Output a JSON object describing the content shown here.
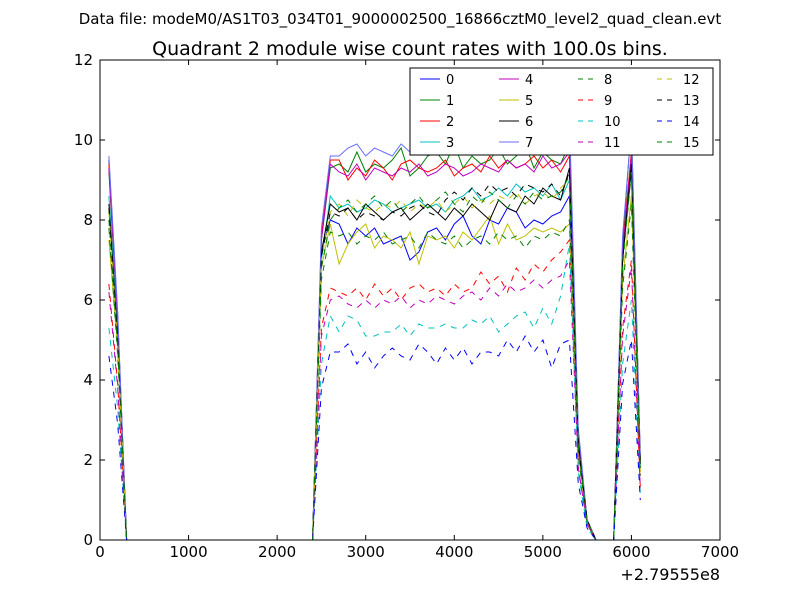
{
  "figure": {
    "suptitle": "Data file: modeM0/AS1T03_034T01_9000002500_16866cztM0_level2_quad_clean.evt",
    "offset_label": "+2.79555e8"
  },
  "chart_data": {
    "type": "line",
    "title": "Quadrant 2 module wise count rates with 100.0s bins.",
    "xlabel": "",
    "ylabel": "",
    "xlim": [
      0,
      7000
    ],
    "ylim": [
      0,
      12
    ],
    "x_offset": 279555000,
    "xticks": [
      0,
      1000,
      2000,
      3000,
      4000,
      5000,
      6000,
      7000
    ],
    "yticks": [
      0,
      2,
      4,
      6,
      8,
      10,
      12
    ],
    "grid": false,
    "legend": {
      "placement": "top-right",
      "ncol": 4
    },
    "x": [
      100,
      200,
      300,
      400,
      500,
      600,
      700,
      800,
      900,
      1000,
      1100,
      1200,
      1300,
      1400,
      1500,
      1600,
      1700,
      1800,
      1900,
      2000,
      2100,
      2200,
      2300,
      2400,
      2500,
      2600,
      2700,
      2800,
      2900,
      3000,
      3100,
      3200,
      3300,
      3400,
      3500,
      3600,
      3700,
      3800,
      3900,
      4000,
      4100,
      4200,
      4300,
      4400,
      4500,
      4600,
      4700,
      4800,
      4900,
      5000,
      5100,
      5200,
      5300,
      5400,
      5500,
      5600,
      5700,
      5800,
      5900,
      6000,
      6100
    ],
    "series": [
      {
        "name": "0",
        "color": "#0000ff",
        "dash": "solid",
        "values": [
          9.5,
          5.6,
          0,
          0,
          0,
          0,
          0,
          0,
          0,
          0,
          0,
          0,
          0,
          0,
          0,
          0,
          0,
          0,
          0,
          0,
          0,
          0,
          0,
          0,
          7.2,
          8.0,
          7.9,
          7.4,
          7.8,
          7.6,
          7.8,
          7.4,
          7.5,
          7.6,
          7.0,
          7.2,
          7.7,
          7.8,
          7.5,
          7.9,
          8.1,
          7.6,
          7.4,
          8.0,
          7.9,
          8.3,
          8.2,
          7.8,
          8.0,
          7.9,
          8.1,
          8.2,
          8.6,
          2.4,
          0.5,
          0,
          0,
          0,
          7.0,
          9.5,
          2.0
        ]
      },
      {
        "name": "1",
        "color": "#008000",
        "dash": "solid",
        "values": [
          9.2,
          5.4,
          0,
          0,
          0,
          0,
          0,
          0,
          0,
          0,
          0,
          0,
          0,
          0,
          0,
          0,
          0,
          0,
          0,
          0,
          0,
          0,
          0,
          0,
          7.5,
          9.3,
          9.4,
          9.2,
          9.7,
          9.2,
          9.4,
          9.3,
          9.5,
          9.8,
          9.1,
          9.3,
          9.6,
          9.7,
          9.4,
          9.9,
          9.3,
          9.6,
          9.4,
          9.5,
          9.8,
          9.4,
          9.6,
          9.9,
          9.3,
          9.7,
          9.5,
          9.4,
          9.9,
          2.6,
          0.5,
          0,
          0,
          0,
          7.4,
          10.4,
          2.0
        ]
      },
      {
        "name": "2",
        "color": "#ff0000",
        "dash": "solid",
        "values": [
          9.4,
          5.5,
          0,
          0,
          0,
          0,
          0,
          0,
          0,
          0,
          0,
          0,
          0,
          0,
          0,
          0,
          0,
          0,
          0,
          0,
          0,
          0,
          0,
          0,
          7.6,
          9.5,
          9.5,
          9.0,
          9.3,
          9.1,
          9.5,
          9.3,
          9.0,
          9.4,
          9.5,
          9.3,
          9.2,
          9.3,
          9.5,
          9.1,
          9.3,
          9.4,
          9.2,
          9.6,
          9.3,
          9.5,
          9.3,
          9.4,
          9.6,
          9.3,
          9.5,
          9.2,
          9.6,
          2.5,
          0.5,
          0,
          0,
          0,
          7.3,
          9.7,
          2.0
        ]
      },
      {
        "name": "3",
        "color": "#00bfbf",
        "dash": "solid",
        "values": [
          8.6,
          5.2,
          0,
          0,
          0,
          0,
          0,
          0,
          0,
          0,
          0,
          0,
          0,
          0,
          0,
          0,
          0,
          0,
          0,
          0,
          0,
          0,
          0,
          0,
          7.0,
          8.6,
          8.3,
          8.4,
          8.2,
          8.3,
          8.5,
          8.4,
          8.2,
          8.3,
          8.4,
          8.5,
          8.3,
          8.4,
          8.2,
          8.5,
          8.6,
          8.8,
          8.5,
          8.6,
          8.8,
          8.6,
          8.9,
          8.7,
          8.8,
          8.6,
          8.9,
          8.5,
          9.0,
          2.3,
          0.5,
          0,
          0,
          0,
          7.0,
          9.2,
          1.8
        ]
      },
      {
        "name": "4",
        "color": "#bf00bf",
        "dash": "solid",
        "values": [
          9.3,
          5.5,
          0,
          0,
          0,
          0,
          0,
          0,
          0,
          0,
          0,
          0,
          0,
          0,
          0,
          0,
          0,
          0,
          0,
          0,
          0,
          0,
          0,
          0,
          7.5,
          9.4,
          9.2,
          9.1,
          9.4,
          9.0,
          9.3,
          9.2,
          9.1,
          9.3,
          9.2,
          9.4,
          9.1,
          9.2,
          9.4,
          9.3,
          9.1,
          9.2,
          9.4,
          9.3,
          9.2,
          9.5,
          9.3,
          9.4,
          9.2,
          9.6,
          9.3,
          9.4,
          9.7,
          2.5,
          0.5,
          0,
          0,
          0,
          7.2,
          9.6,
          2.0
        ]
      },
      {
        "name": "5",
        "color": "#bfbf00",
        "dash": "solid",
        "values": [
          7.5,
          4.8,
          0,
          0,
          0,
          0,
          0,
          0,
          0,
          0,
          0,
          0,
          0,
          0,
          0,
          0,
          0,
          0,
          0,
          0,
          0,
          0,
          0,
          0,
          6.8,
          7.9,
          6.9,
          7.4,
          7.7,
          7.9,
          7.3,
          7.6,
          7.5,
          7.3,
          7.7,
          6.9,
          7.6,
          7.5,
          7.6,
          7.3,
          7.7,
          7.5,
          7.8,
          8.1,
          7.4,
          7.9,
          7.5,
          7.6,
          7.8,
          7.7,
          7.8,
          7.7,
          7.9,
          2.2,
          0.4,
          0,
          0,
          0,
          6.5,
          8.6,
          1.7
        ]
      },
      {
        "name": "6",
        "color": "#000000",
        "dash": "solid",
        "values": [
          8.4,
          5.0,
          0,
          0,
          0,
          0,
          0,
          0,
          0,
          0,
          0,
          0,
          0,
          0,
          0,
          0,
          0,
          0,
          0,
          0,
          0,
          0,
          0,
          0,
          7.2,
          8.4,
          8.2,
          8.3,
          8.0,
          8.4,
          8.2,
          8.0,
          8.2,
          8.3,
          8.0,
          8.2,
          8.4,
          8.2,
          8.0,
          8.3,
          8.1,
          8.4,
          8.2,
          8.0,
          8.5,
          8.3,
          8.2,
          8.6,
          8.4,
          8.8,
          8.6,
          8.5,
          9.3,
          2.4,
          0.5,
          0,
          0,
          0,
          7.0,
          9.4,
          1.9
        ]
      },
      {
        "name": "7",
        "color": "#6b6bff",
        "dash": "solid",
        "values": [
          9.6,
          5.7,
          0,
          0,
          0,
          0,
          0,
          0,
          0,
          0,
          0,
          0,
          0,
          0,
          0,
          0,
          0,
          0,
          0,
          0,
          0,
          0,
          0,
          0,
          7.8,
          9.6,
          9.6,
          9.8,
          9.9,
          9.6,
          9.8,
          9.7,
          9.6,
          9.9,
          9.7,
          9.8,
          9.6,
          9.9,
          9.7,
          10.0,
          9.8,
          9.9,
          10.0,
          10.3,
          9.7,
          10.1,
          10.3,
          9.9,
          10.2,
          10.0,
          10.1,
          10.3,
          10.6,
          2.8,
          0.5,
          0,
          0,
          0,
          7.6,
          10.3,
          2.1
        ]
      },
      {
        "name": "8",
        "color": "#008000",
        "dash": "dashed",
        "values": [
          7.8,
          4.6,
          0,
          0,
          0,
          0,
          0,
          0,
          0,
          0,
          0,
          0,
          0,
          0,
          0,
          0,
          0,
          0,
          0,
          0,
          0,
          0,
          0,
          0,
          6.5,
          7.7,
          7.6,
          7.7,
          7.4,
          7.6,
          7.5,
          7.7,
          7.4,
          7.5,
          7.6,
          7.3,
          7.7,
          7.5,
          7.4,
          7.6,
          7.3,
          7.5,
          7.6,
          7.4,
          7.7,
          7.5,
          7.6,
          7.3,
          7.6,
          7.5,
          7.7,
          7.6,
          8.0,
          2.1,
          0.4,
          0,
          0,
          0,
          6.3,
          8.4,
          1.6
        ]
      },
      {
        "name": "9",
        "color": "#ff0000",
        "dash": "dashed",
        "values": [
          6.4,
          3.9,
          0,
          0,
          0,
          0,
          0,
          0,
          0,
          0,
          0,
          0,
          0,
          0,
          0,
          0,
          0,
          0,
          0,
          0,
          0,
          0,
          0,
          0,
          5.3,
          6.3,
          6.2,
          6.1,
          6.3,
          6.0,
          6.4,
          6.1,
          6.3,
          6.0,
          6.3,
          6.4,
          6.2,
          6.3,
          6.1,
          6.4,
          6.2,
          6.3,
          6.7,
          6.4,
          6.6,
          6.2,
          6.8,
          6.5,
          6.9,
          6.7,
          7.0,
          7.2,
          7.5,
          1.8,
          0.4,
          0,
          0,
          0,
          5.3,
          7.0,
          1.3
        ]
      },
      {
        "name": "10",
        "color": "#00bfbf",
        "dash": "dashed",
        "values": [
          5.3,
          3.3,
          0,
          0,
          0,
          0,
          0,
          0,
          0,
          0,
          0,
          0,
          0,
          0,
          0,
          0,
          0,
          0,
          0,
          0,
          0,
          0,
          0,
          0,
          4.4,
          5.6,
          5.2,
          5.6,
          5.5,
          5.1,
          5.1,
          5.2,
          5.2,
          5.4,
          5.1,
          5.4,
          5.3,
          5.3,
          5.4,
          5.3,
          5.3,
          5.5,
          5.4,
          5.6,
          5.2,
          5.4,
          5.6,
          5.7,
          5.3,
          5.8,
          5.4,
          6.1,
          7.4,
          1.7,
          0.3,
          0,
          0,
          0,
          4.4,
          6.0,
          1.1
        ]
      },
      {
        "name": "11",
        "color": "#bf00bf",
        "dash": "dashed",
        "values": [
          6.2,
          3.8,
          0,
          0,
          0,
          0,
          0,
          0,
          0,
          0,
          0,
          0,
          0,
          0,
          0,
          0,
          0,
          0,
          0,
          0,
          0,
          0,
          0,
          0,
          5.1,
          6.0,
          6.1,
          5.9,
          5.8,
          6.0,
          5.8,
          6.0,
          5.9,
          6.1,
          5.8,
          6.0,
          5.9,
          6.1,
          6.0,
          5.9,
          6.1,
          6.2,
          6.0,
          6.3,
          6.1,
          6.4,
          6.2,
          6.3,
          6.5,
          6.3,
          6.5,
          6.6,
          7.0,
          1.8,
          0.4,
          0,
          0,
          0,
          5.1,
          6.8,
          1.3
        ]
      },
      {
        "name": "12",
        "color": "#bfbf00",
        "dash": "dashed",
        "values": [
          8.2,
          4.9,
          0,
          0,
          0,
          0,
          0,
          0,
          0,
          0,
          0,
          0,
          0,
          0,
          0,
          0,
          0,
          0,
          0,
          0,
          0,
          0,
          0,
          0,
          7.0,
          8.2,
          8.4,
          8.1,
          8.5,
          8.3,
          8.2,
          8.4,
          8.3,
          8.5,
          8.2,
          8.4,
          8.3,
          8.5,
          8.2,
          8.4,
          8.6,
          8.3,
          8.5,
          8.4,
          8.6,
          8.5,
          8.7,
          8.4,
          8.6,
          8.7,
          8.5,
          8.8,
          9.0,
          2.3,
          0.5,
          0,
          0,
          0,
          6.8,
          9.2,
          1.8
        ]
      },
      {
        "name": "13",
        "color": "#000000",
        "dash": "dashed",
        "values": [
          8.3,
          5.0,
          0,
          0,
          0,
          0,
          0,
          0,
          0,
          0,
          0,
          0,
          0,
          0,
          0,
          0,
          0,
          0,
          0,
          0,
          0,
          0,
          0,
          0,
          7.1,
          8.2,
          8.1,
          8.3,
          8.0,
          8.2,
          8.1,
          8.0,
          8.2,
          8.1,
          8.3,
          8.4,
          8.2,
          8.1,
          8.5,
          8.7,
          8.5,
          8.8,
          8.6,
          8.9,
          8.7,
          8.8,
          8.6,
          8.9,
          8.8,
          8.7,
          8.9,
          8.6,
          9.2,
          2.4,
          0.5,
          0,
          0,
          0,
          7.0,
          9.3,
          1.9
        ]
      },
      {
        "name": "14",
        "color": "#0000ff",
        "dash": "dashed",
        "values": [
          4.6,
          2.9,
          0,
          0,
          0,
          0,
          0,
          0,
          0,
          0,
          0,
          0,
          0,
          0,
          0,
          0,
          0,
          0,
          0,
          0,
          0,
          0,
          0,
          0,
          3.8,
          4.7,
          4.7,
          4.9,
          4.4,
          4.7,
          4.3,
          4.6,
          4.8,
          4.6,
          4.5,
          4.9,
          4.7,
          4.4,
          4.8,
          4.5,
          4.8,
          4.4,
          4.7,
          4.7,
          4.6,
          5.0,
          4.7,
          5.1,
          4.7,
          5.0,
          4.3,
          4.9,
          5.0,
          1.4,
          0.3,
          0,
          0,
          0,
          3.9,
          5.0,
          1.0
        ]
      },
      {
        "name": "15",
        "color": "#008000",
        "dash": "dashed",
        "values": [
          8.0,
          4.8,
          0,
          0,
          0,
          0,
          0,
          0,
          0,
          0,
          0,
          0,
          0,
          0,
          0,
          0,
          0,
          0,
          0,
          0,
          0,
          0,
          0,
          0,
          6.8,
          8.0,
          8.3,
          8.5,
          8.2,
          8.4,
          8.6,
          8.3,
          8.5,
          8.2,
          8.4,
          8.6,
          8.3,
          8.5,
          8.7,
          8.4,
          8.2,
          8.6,
          8.4,
          8.7,
          8.5,
          8.3,
          8.6,
          8.4,
          8.7,
          8.5,
          8.6,
          8.7,
          9.1,
          2.3,
          0.5,
          0,
          0,
          0,
          6.9,
          9.2,
          1.8
        ]
      }
    ]
  }
}
